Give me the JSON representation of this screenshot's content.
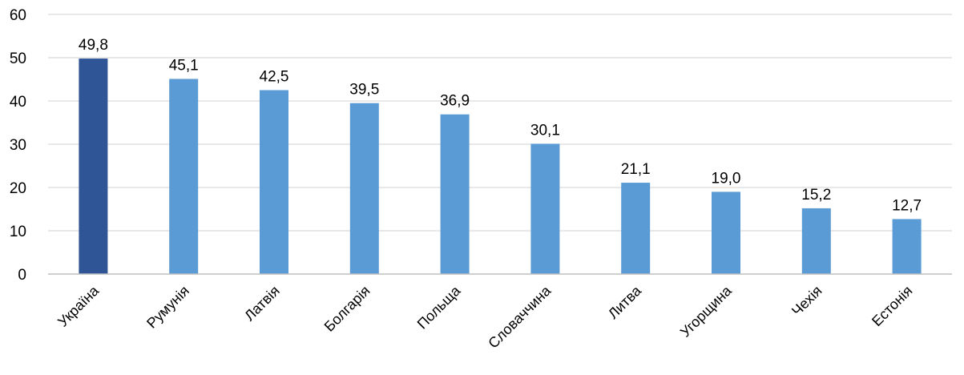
{
  "chart_data": {
    "type": "bar",
    "categories": [
      "Україна",
      "Румунія",
      "Латвія",
      "Болгарія",
      "Польща",
      "Словаччина",
      "Литва",
      "Угорщина",
      "Чехія",
      "Естонія"
    ],
    "values": [
      49.8,
      45.1,
      42.5,
      39.5,
      36.9,
      30.1,
      21.1,
      19.0,
      15.2,
      12.7
    ],
    "value_labels": [
      "49,8",
      "45,1",
      "42,5",
      "39,5",
      "36,9",
      "30,1",
      "21,1",
      "19,0",
      "15,2",
      "12,7"
    ],
    "ylim": [
      0,
      60
    ],
    "yticks": [
      0,
      10,
      20,
      30,
      40,
      50,
      60
    ],
    "grid": true,
    "legend": "none",
    "highlight_index": 0,
    "colors": {
      "highlight": "#2f5597",
      "default": "#5b9bd5"
    }
  }
}
